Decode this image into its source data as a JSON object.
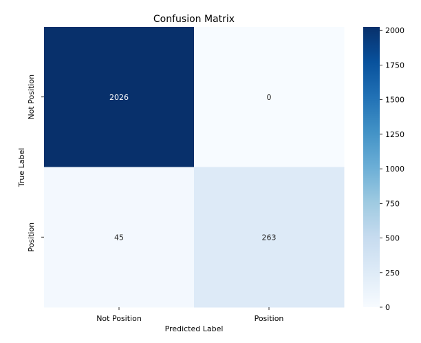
{
  "chart_data": {
    "type": "heatmap",
    "title": "Confusion Matrix",
    "xlabel": "Predicted Label",
    "ylabel": "True Label",
    "x_categories": [
      "Not Position",
      "Position"
    ],
    "y_categories": [
      "Not Position",
      "Position"
    ],
    "values": [
      [
        2026,
        0
      ],
      [
        45,
        263
      ]
    ],
    "colormap": "Blues",
    "color_range": [
      0,
      2026
    ],
    "colorbar_ticks": [
      0,
      250,
      500,
      750,
      1000,
      1250,
      1500,
      1750,
      2000
    ],
    "colors": {
      "low": "#f7fbff",
      "high": "#08306b",
      "light_text": "#ffffff",
      "dark_text": "#262626"
    }
  }
}
